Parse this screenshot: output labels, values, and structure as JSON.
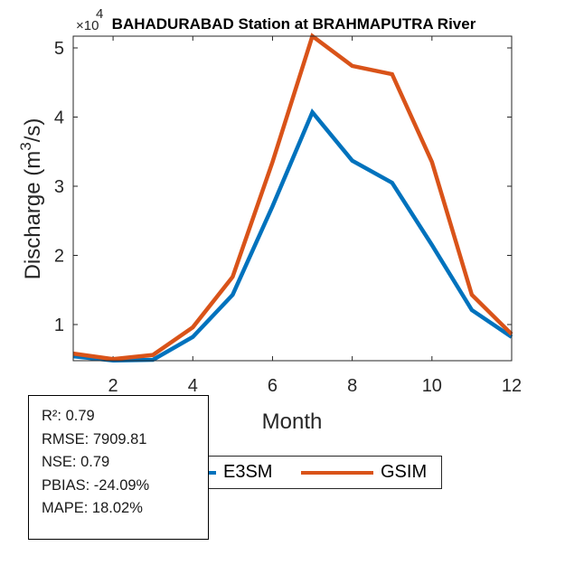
{
  "chart_data": {
    "type": "line",
    "title": "BAHADURABAD  Station at  BRAHMAPUTRA  River",
    "xlabel": "Month",
    "ylabel": "Discharge (m",
    "ylabel_sup": "3",
    "ylabel_suffix": "/s)",
    "y_exponent_label": "×10",
    "y_exponent_power": "4",
    "x": [
      1,
      2,
      3,
      4,
      5,
      6,
      7,
      8,
      9,
      10,
      11,
      12
    ],
    "xlim": [
      1,
      12
    ],
    "ylim": [
      0.477,
      5.17
    ],
    "xticks": [
      2,
      4,
      6,
      8,
      10,
      12
    ],
    "xtick_labels": [
      "2",
      "4",
      "6",
      "8",
      "10",
      "12"
    ],
    "yticks": [
      1,
      2,
      3,
      4,
      5
    ],
    "ytick_labels": [
      "1",
      "2",
      "3",
      "4",
      "5"
    ],
    "grid": false,
    "legend_position": "bottom",
    "series": [
      {
        "name": "E3SM",
        "color": "#0072BD",
        "values": [
          0.54,
          0.48,
          0.49,
          0.82,
          1.43,
          2.71,
          4.07,
          3.37,
          3.05,
          2.15,
          1.21,
          0.82
        ]
      },
      {
        "name": "GSIM",
        "color": "#D95319",
        "values": [
          0.58,
          0.5,
          0.56,
          0.96,
          1.69,
          3.35,
          5.17,
          4.74,
          4.62,
          3.35,
          1.43,
          0.86
        ]
      }
    ]
  },
  "stats": {
    "r2": "R²: 0.79",
    "rmse": "RMSE: 7909.81",
    "nse": "NSE: 0.79",
    "pbias": "PBIAS: -24.09%",
    "mape": "MAPE: 18.02%"
  }
}
